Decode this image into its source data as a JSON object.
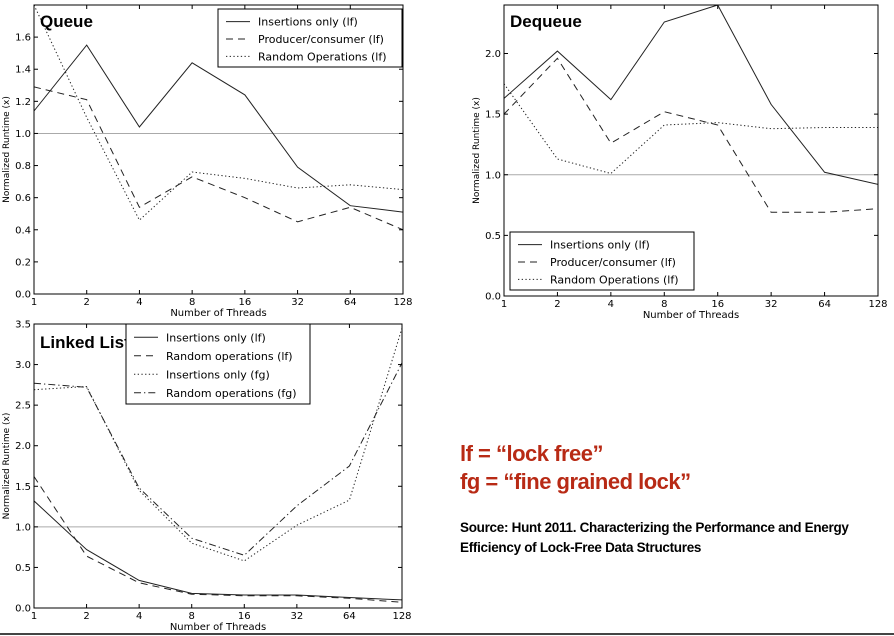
{
  "notes": {
    "lf": "lf = “lock free”",
    "fg": "fg = “fine grained lock”",
    "source": "Source: Hunt 2011. Characterizing the Performance and Energy Efficiency of Lock-Free Data Structures"
  },
  "chart_data": [
    {
      "id": "queue",
      "type": "line",
      "title": "Queue",
      "xlabel": "Number of Threads",
      "ylabel": "Normalized Runtime (x)",
      "categories": [
        "1",
        "2",
        "4",
        "8",
        "16",
        "32",
        "64",
        "128"
      ],
      "ylim": [
        0,
        1.8
      ],
      "yticks": [
        0.0,
        0.2,
        0.4,
        0.6,
        0.8,
        1.0,
        1.2,
        1.4,
        1.6
      ],
      "reference_line": 1.0,
      "legend_position": "top-right",
      "series": [
        {
          "name": "Insertions only (lf)",
          "style": "solid",
          "values": [
            1.14,
            1.55,
            1.04,
            1.44,
            1.24,
            0.79,
            0.55,
            0.51
          ]
        },
        {
          "name": "Producer/consumer (lf)",
          "style": "dashed",
          "values": [
            1.29,
            1.21,
            0.54,
            0.73,
            0.6,
            0.45,
            0.54,
            0.4
          ]
        },
        {
          "name": "Random Operations (lf)",
          "style": "dotted",
          "values": [
            1.8,
            1.1,
            0.46,
            0.76,
            0.72,
            0.66,
            0.68,
            0.65
          ]
        }
      ]
    },
    {
      "id": "dequeue",
      "type": "line",
      "title": "Dequeue",
      "xlabel": "Number of Threads",
      "ylabel": "Normalized Runtime (x)",
      "categories": [
        "1",
        "2",
        "4",
        "8",
        "16",
        "32",
        "64",
        "128"
      ],
      "ylim": [
        0,
        2.4
      ],
      "yticks": [
        0.0,
        0.5,
        1.0,
        1.5,
        2.0
      ],
      "reference_line": 1.0,
      "legend_position": "bottom-left",
      "series": [
        {
          "name": "Insertions only (lf)",
          "style": "solid",
          "values": [
            1.63,
            2.02,
            1.62,
            2.26,
            2.4,
            1.58,
            1.02,
            0.92
          ]
        },
        {
          "name": "Producer/consumer (lf)",
          "style": "dashed",
          "values": [
            1.5,
            1.96,
            1.26,
            1.52,
            1.41,
            0.69,
            0.69,
            0.72
          ]
        },
        {
          "name": "Random Operations (lf)",
          "style": "dotted",
          "values": [
            1.75,
            1.13,
            1.01,
            1.41,
            1.43,
            1.38,
            1.39,
            1.39
          ]
        }
      ]
    },
    {
      "id": "linked-list",
      "type": "line",
      "title": "Linked List",
      "xlabel": "Number of Threads",
      "ylabel": "Normalized Runtime (x)",
      "categories": [
        "1",
        "2",
        "4",
        "8",
        "16",
        "32",
        "64",
        "128"
      ],
      "ylim": [
        0,
        3.5
      ],
      "yticks": [
        0.0,
        0.5,
        1.0,
        1.5,
        2.0,
        2.5,
        3.0,
        3.5
      ],
      "reference_line": 1.0,
      "legend_position": "top-left",
      "series": [
        {
          "name": "Insertions only (lf)",
          "style": "solid",
          "values": [
            1.32,
            0.72,
            0.34,
            0.18,
            0.16,
            0.16,
            0.13,
            0.1
          ]
        },
        {
          "name": "Random operations (lf)",
          "style": "dashed",
          "values": [
            1.62,
            0.64,
            0.31,
            0.17,
            0.15,
            0.15,
            0.12,
            0.07
          ]
        },
        {
          "name": "Insertions only (fg)",
          "style": "dotted",
          "values": [
            2.69,
            2.73,
            1.45,
            0.8,
            0.58,
            1.02,
            1.33,
            3.45
          ]
        },
        {
          "name": "Random operations (fg)",
          "style": "dashdot",
          "values": [
            2.77,
            2.72,
            1.48,
            0.86,
            0.65,
            1.26,
            1.75,
            3.02
          ]
        }
      ]
    }
  ]
}
